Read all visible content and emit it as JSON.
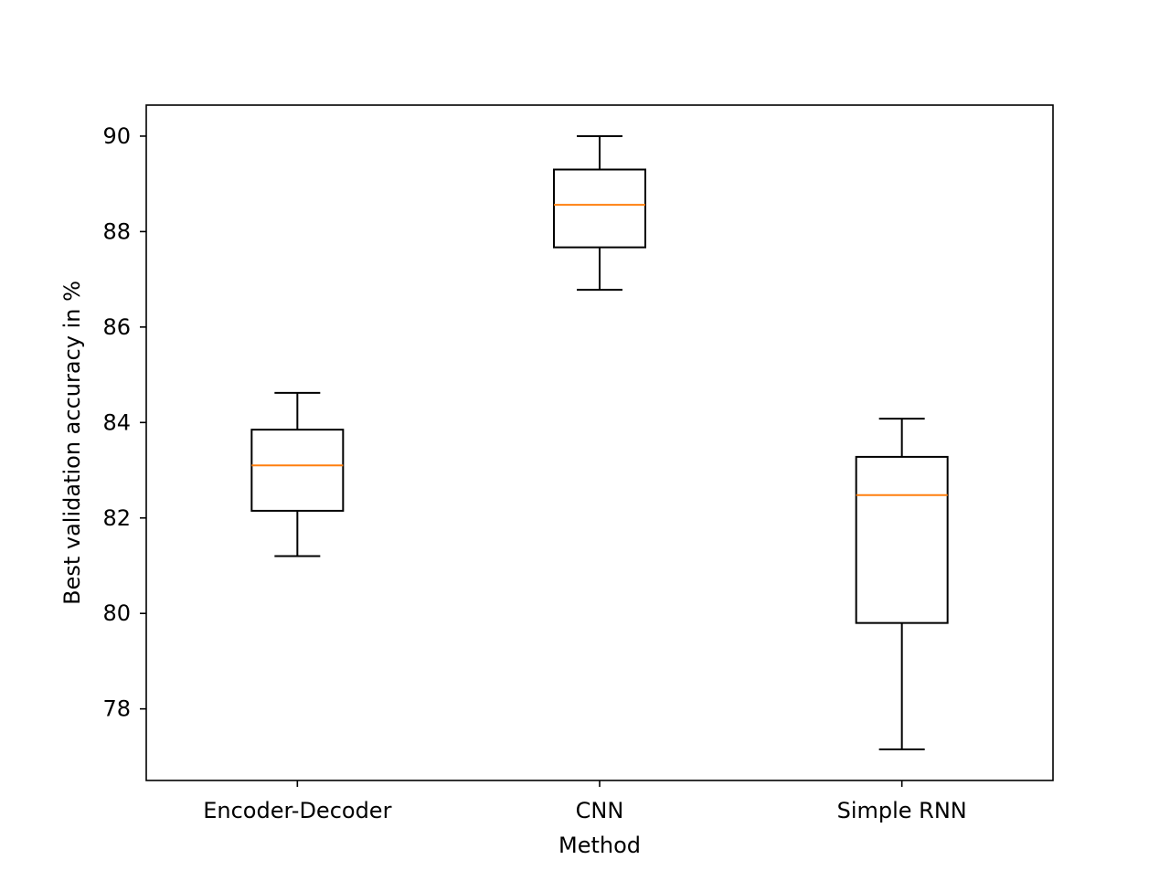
{
  "chart_data": {
    "type": "box",
    "title": "",
    "xlabel": "Method",
    "ylabel": "Best validation accuracy in %",
    "ylim": [
      76.5,
      90.65
    ],
    "yticks": [
      78,
      80,
      82,
      84,
      86,
      88,
      90
    ],
    "grid": false,
    "categories": [
      "Encoder-Decoder",
      "CNN",
      "Simple RNN"
    ],
    "boxes": [
      {
        "category": "Encoder-Decoder",
        "whisker_low": 81.2,
        "q1": 82.15,
        "median": 83.1,
        "q3": 83.85,
        "whisker_high": 84.62
      },
      {
        "category": "CNN",
        "whisker_low": 86.78,
        "q1": 87.67,
        "median": 88.56,
        "q3": 89.3,
        "whisker_high": 90.0
      },
      {
        "category": "Simple RNN",
        "whisker_low": 77.15,
        "q1": 79.8,
        "median": 82.48,
        "q3": 83.28,
        "whisker_high": 84.08
      }
    ],
    "colors": {
      "box": "#000000",
      "median": "#ff7f0e",
      "axes": "#000000",
      "background": "#ffffff"
    }
  }
}
